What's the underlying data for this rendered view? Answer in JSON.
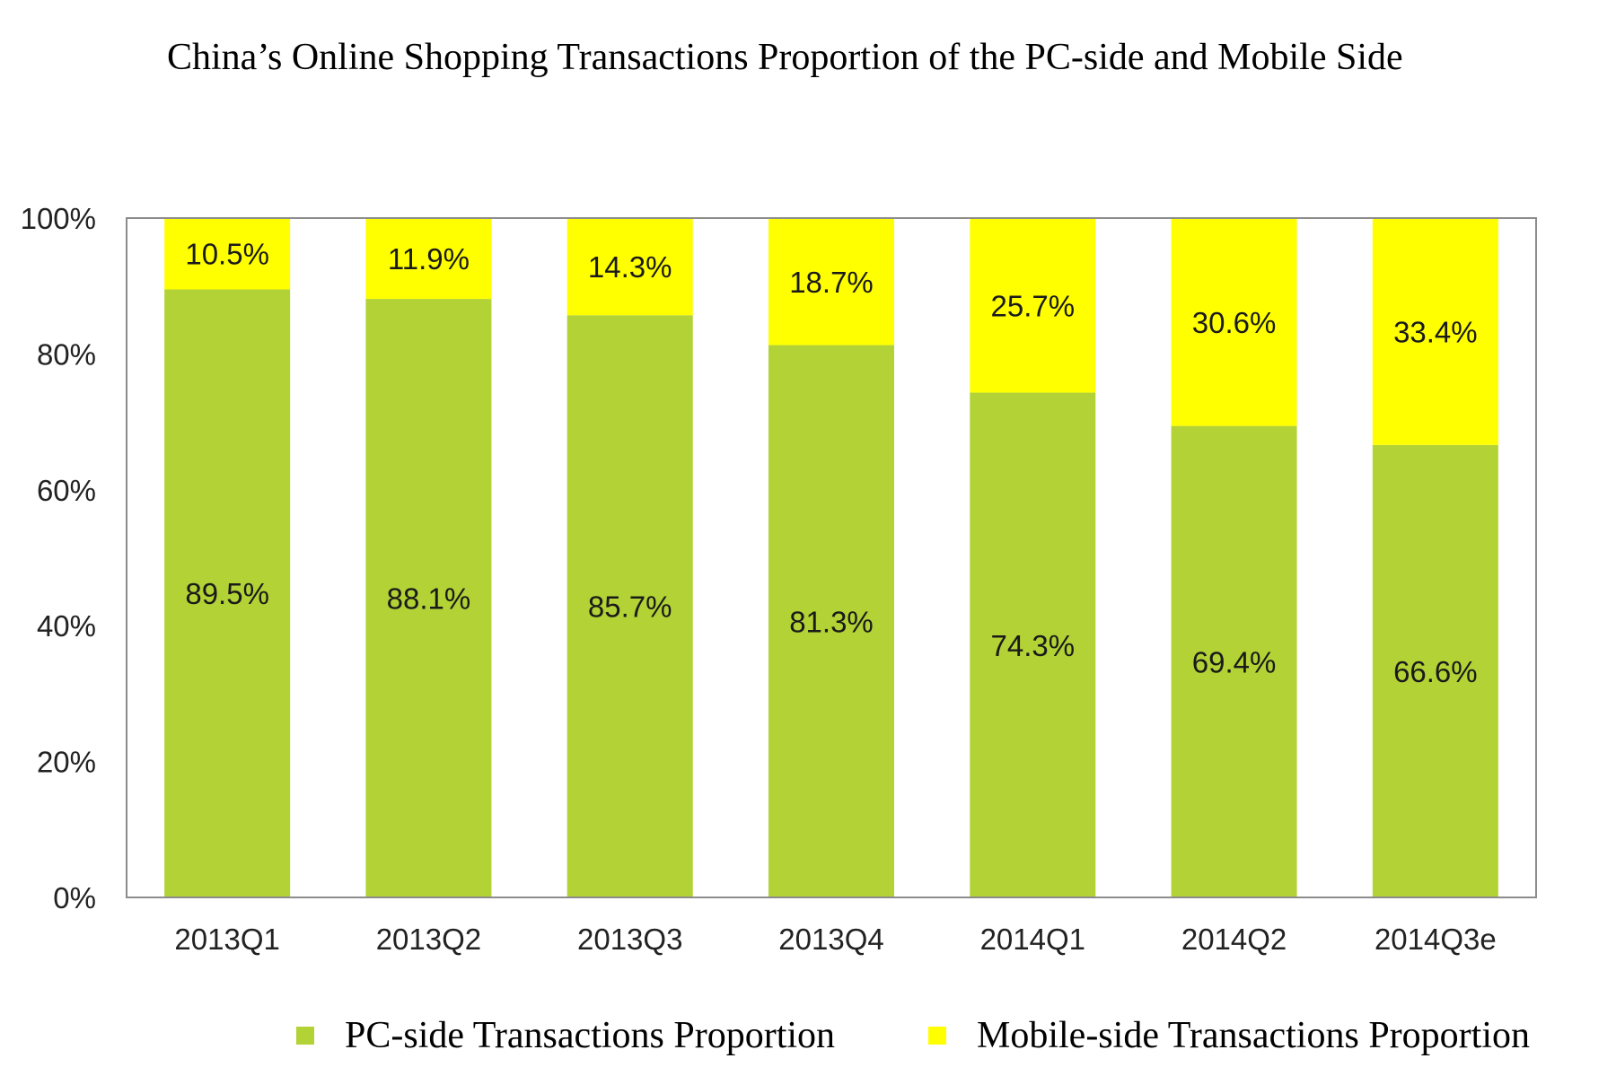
{
  "chart_data": {
    "type": "bar",
    "stacked": true,
    "title": "China’s Online Shopping Transactions Proportion of the PC-side and Mobile Side",
    "categories": [
      "2013Q1",
      "2013Q2",
      "2013Q3",
      "2013Q4",
      "2014Q1",
      "2014Q2",
      "2014Q3e"
    ],
    "series": [
      {
        "name": "PC-side Transactions Proportion",
        "color": "#b2d235",
        "values": [
          89.5,
          88.1,
          85.7,
          81.3,
          74.3,
          69.4,
          66.6
        ],
        "labels": [
          "89.5%",
          "88.1%",
          "85.7%",
          "81.3%",
          "74.3%",
          "69.4%",
          "66.6%"
        ]
      },
      {
        "name": "Mobile-side Transactions Proportion",
        "color": "#ffff00",
        "values": [
          10.5,
          11.9,
          14.3,
          18.7,
          25.7,
          30.6,
          33.4
        ],
        "labels": [
          "10.5%",
          "11.9%",
          "14.3%",
          "18.7%",
          "25.7%",
          "30.6%",
          "33.4%"
        ]
      }
    ],
    "ylim": [
      0,
      100
    ],
    "yticks": [
      0,
      20,
      40,
      60,
      80,
      100
    ],
    "ytick_labels": [
      "0%",
      "20%",
      "40%",
      "60%",
      "80%",
      "100%"
    ],
    "grid": false,
    "legend": "bottom"
  }
}
